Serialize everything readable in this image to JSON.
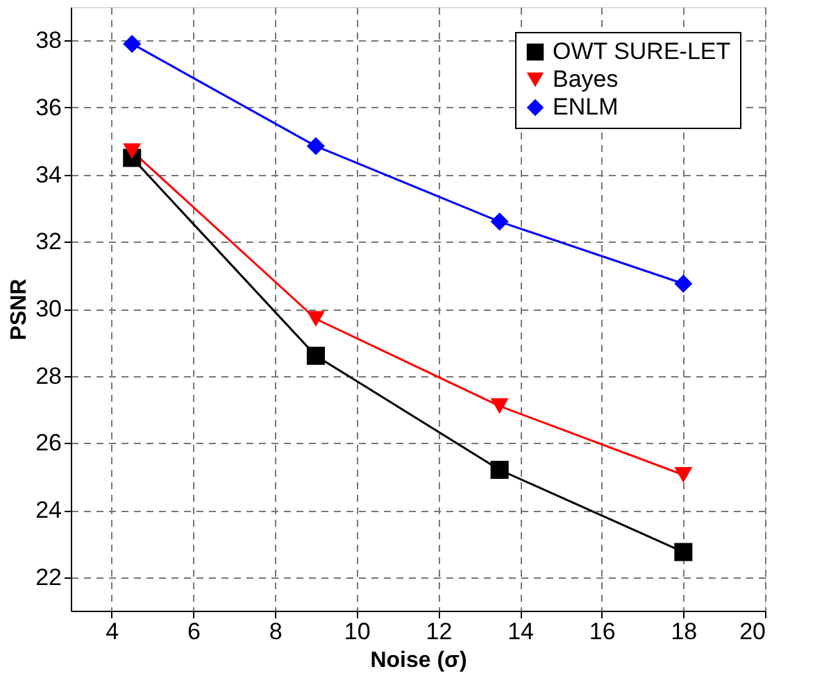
{
  "chart_data": {
    "type": "line",
    "xlabel": "Noise (σ)",
    "ylabel": "PSNR",
    "xlim": [
      3,
      20
    ],
    "xticks": [
      4,
      6,
      8,
      10,
      12,
      14,
      16,
      18,
      20
    ],
    "ylim": [
      21,
      39
    ],
    "yticks": [
      22,
      24,
      26,
      28,
      30,
      32,
      34,
      36,
      38
    ],
    "grid": true,
    "legend": "top right",
    "line_style": "solid",
    "x": [
      4.5,
      9,
      13.5,
      18
    ],
    "series": [
      {
        "name": "OWT SURE-LET",
        "color": "#000000",
        "marker": "square",
        "values": [
          34.5,
          28.6,
          25.2,
          22.75
        ]
      },
      {
        "name": "Bayes",
        "color": "#ff0000",
        "marker": "triangle",
        "values": [
          34.7,
          29.7,
          27.1,
          25.05
        ]
      },
      {
        "name": "ENLM",
        "color": "#0000ff",
        "marker": "diamond",
        "values": [
          37.9,
          34.85,
          32.6,
          30.75
        ]
      }
    ]
  }
}
